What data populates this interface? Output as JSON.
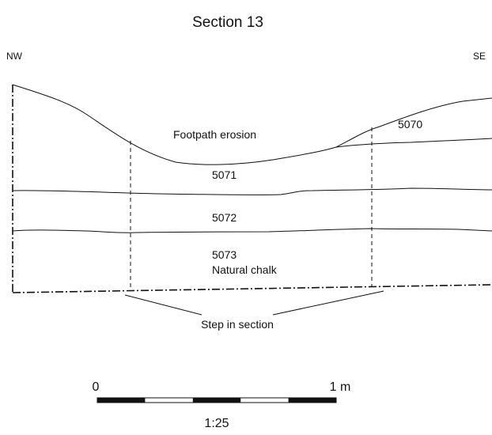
{
  "title": "Section 13",
  "orientation": {
    "left": "NW",
    "right": "SE"
  },
  "layers": [
    {
      "id": "footpath",
      "label": "Footpath erosion"
    },
    {
      "id": "5070",
      "label": "5070"
    },
    {
      "id": "5071",
      "label": "5071"
    },
    {
      "id": "5072",
      "label": "5072"
    },
    {
      "id": "5073",
      "label": "5073"
    },
    {
      "id": "natural",
      "label": "Natural chalk"
    }
  ],
  "annotation": "Step in section",
  "scale_bar": {
    "start_label": "0",
    "end_label": "1 m",
    "ratio": "1:25",
    "segments": 5
  }
}
